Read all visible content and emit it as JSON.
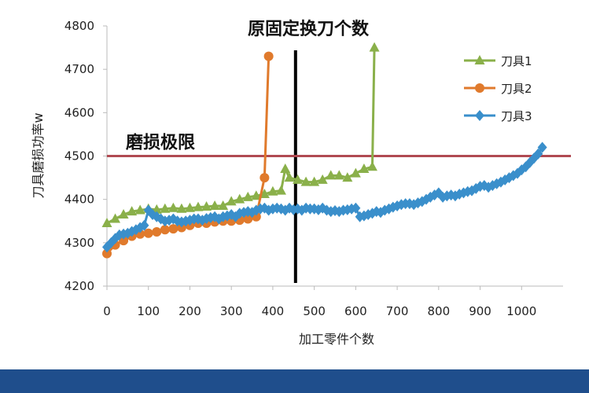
{
  "chart_data": {
    "type": "line",
    "xlabel": "加工零件个数",
    "ylabel": "刀具磨损功率w",
    "xlim": [
      0,
      1100
    ],
    "ylim": [
      4200,
      4800
    ],
    "xticks": [
      0,
      100,
      200,
      300,
      400,
      500,
      600,
      700,
      800,
      900,
      1000
    ],
    "yticks": [
      4200,
      4300,
      4400,
      4500,
      4600,
      4700,
      4800
    ],
    "grid": false,
    "legend_position": "top-right",
    "annotations": [
      {
        "text": "原固定换刀个数",
        "kind": "vertical-line",
        "x": 470
      },
      {
        "text": "磨损极限",
        "kind": "horizontal-line",
        "y": 4500
      }
    ],
    "series": [
      {
        "name": "刀具1",
        "color": "#8ab04a",
        "marker": "triangle",
        "x": [
          0,
          20,
          40,
          60,
          80,
          100,
          120,
          140,
          160,
          180,
          200,
          220,
          240,
          260,
          280,
          300,
          320,
          340,
          360,
          380,
          400,
          420,
          430,
          440,
          460,
          480,
          500,
          520,
          540,
          560,
          580,
          600,
          620,
          640,
          645
        ],
        "y": [
          4345,
          4355,
          4365,
          4372,
          4375,
          4378,
          4376,
          4378,
          4380,
          4378,
          4380,
          4382,
          4383,
          4385,
          4385,
          4395,
          4400,
          4405,
          4408,
          4412,
          4418,
          4420,
          4470,
          4450,
          4445,
          4440,
          4440,
          4445,
          4455,
          4455,
          4450,
          4460,
          4470,
          4475,
          4750
        ]
      },
      {
        "name": "刀具2",
        "color": "#e07a2c",
        "marker": "circle",
        "x": [
          0,
          20,
          40,
          60,
          80,
          100,
          120,
          140,
          160,
          180,
          200,
          220,
          240,
          260,
          280,
          300,
          320,
          340,
          360,
          380,
          390
        ],
        "y": [
          4275,
          4295,
          4305,
          4315,
          4320,
          4322,
          4325,
          4330,
          4332,
          4335,
          4340,
          4345,
          4345,
          4348,
          4350,
          4350,
          4352,
          4355,
          4360,
          4450,
          4730
        ]
      },
      {
        "name": "刀具3",
        "color": "#3a8fcb",
        "marker": "diamond",
        "x": [
          0,
          10,
          20,
          30,
          40,
          50,
          60,
          70,
          80,
          90,
          100,
          110,
          120,
          130,
          140,
          150,
          160,
          170,
          180,
          190,
          200,
          210,
          220,
          230,
          240,
          250,
          260,
          270,
          280,
          290,
          300,
          310,
          320,
          330,
          340,
          350,
          360,
          370,
          380,
          390,
          400,
          410,
          420,
          430,
          440,
          450,
          460,
          470,
          480,
          490,
          500,
          510,
          520,
          530,
          540,
          550,
          560,
          570,
          580,
          590,
          600,
          610,
          620,
          630,
          640,
          650,
          660,
          670,
          680,
          690,
          700,
          710,
          720,
          730,
          740,
          750,
          760,
          770,
          780,
          790,
          800,
          810,
          820,
          830,
          840,
          850,
          860,
          870,
          880,
          890,
          900,
          910,
          920,
          930,
          940,
          950,
          960,
          970,
          980,
          990,
          1000,
          1010,
          1020,
          1030,
          1040,
          1050
        ],
        "y": [
          4290,
          4300,
          4310,
          4318,
          4320,
          4322,
          4326,
          4330,
          4335,
          4340,
          4375,
          4365,
          4360,
          4355,
          4350,
          4352,
          4355,
          4350,
          4348,
          4350,
          4352,
          4355,
          4355,
          4352,
          4356,
          4358,
          4360,
          4355,
          4360,
          4362,
          4365,
          4360,
          4368,
          4370,
          4372,
          4370,
          4375,
          4378,
          4380,
          4375,
          4378,
          4380,
          4378,
          4375,
          4380,
          4376,
          4378,
          4375,
          4380,
          4378,
          4378,
          4376,
          4380,
          4375,
          4372,
          4374,
          4372,
          4375,
          4376,
          4378,
          4380,
          4360,
          4362,
          4365,
          4368,
          4372,
          4370,
          4375,
          4378,
          4382,
          4385,
          4388,
          4390,
          4390,
          4388,
          4392,
          4395,
          4400,
          4405,
          4410,
          4415,
          4405,
          4408,
          4410,
          4408,
          4412,
          4415,
          4418,
          4420,
          4425,
          4430,
          4432,
          4428,
          4432,
          4436,
          4440,
          4445,
          4450,
          4455,
          4460,
          4468,
          4475,
          4485,
          4495,
          4505,
          4520
        ]
      }
    ]
  }
}
